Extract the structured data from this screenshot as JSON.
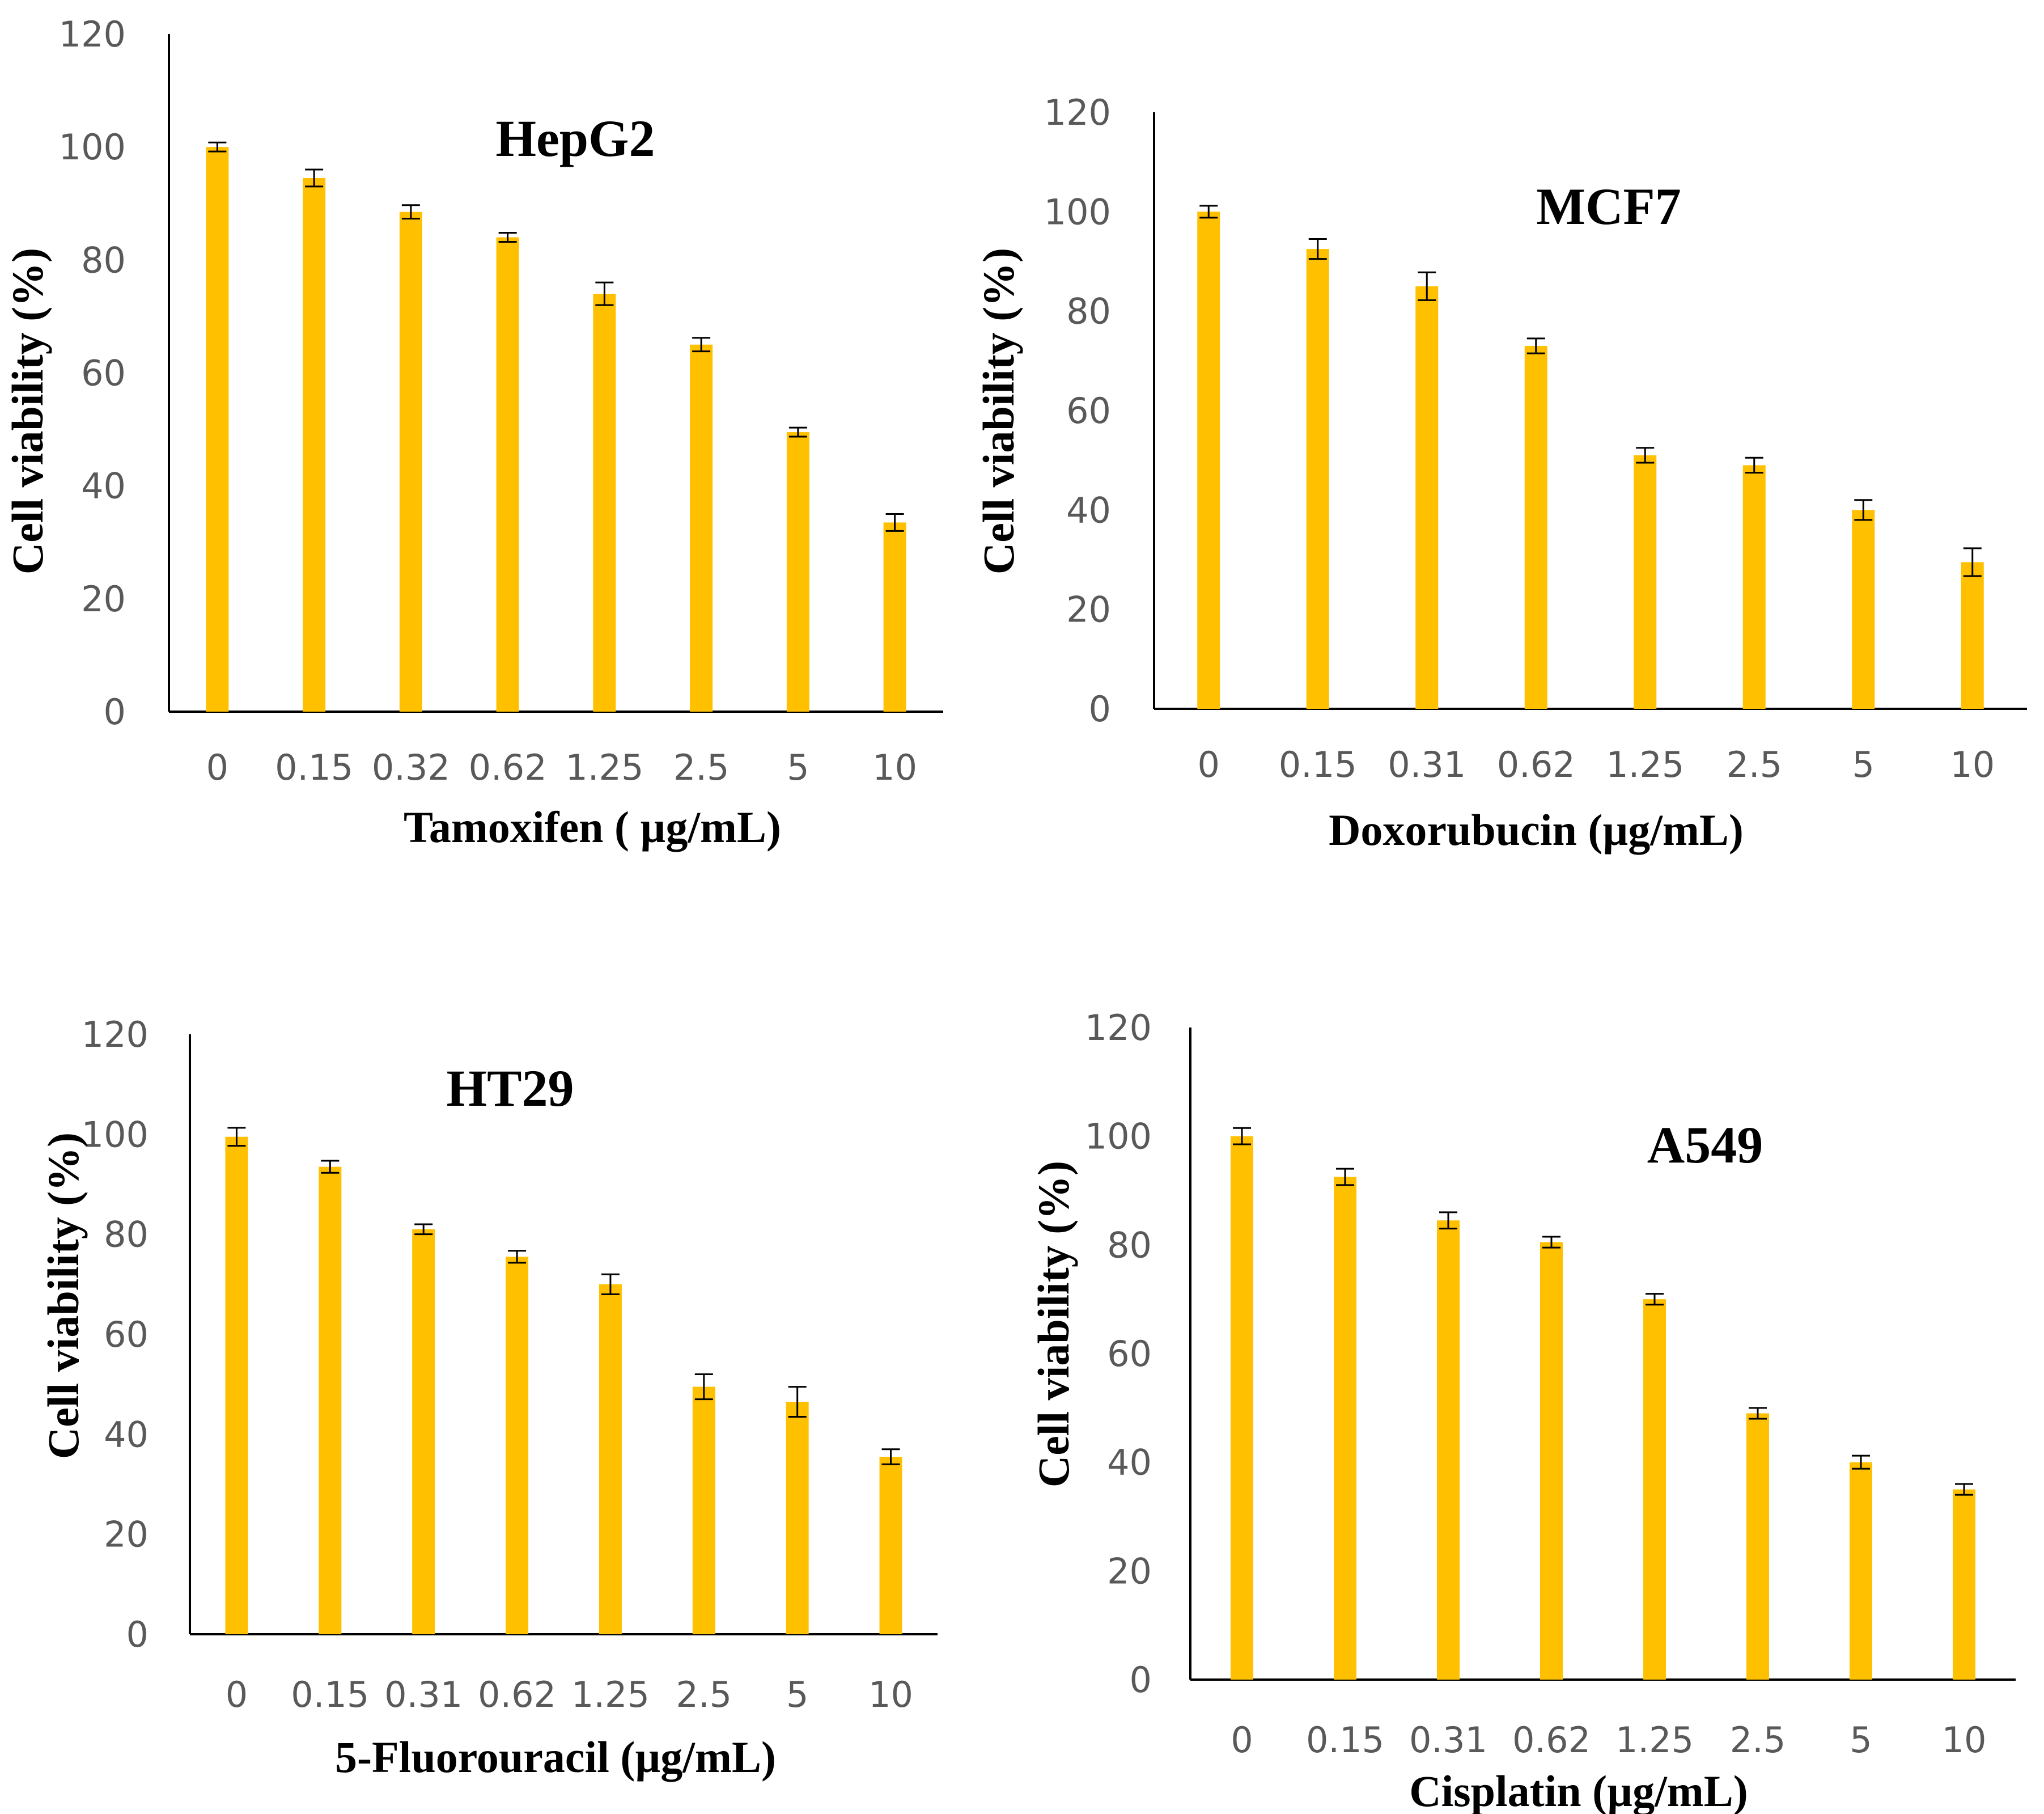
{
  "figure": {
    "bar_color": "#FFC000",
    "axis_color": "#000000",
    "error_bar_color": "#000000"
  },
  "chart_data": [
    {
      "type": "bar",
      "title": "HepG2",
      "xlabel": "Tamoxifen ( µg/mL)",
      "ylabel": "Cell viability (%)",
      "categories": [
        "0",
        "0.15",
        "0.32",
        "0.62",
        "1.25",
        "2.5",
        "5",
        "10"
      ],
      "values": [
        100,
        94.5,
        88.5,
        84,
        74,
        65,
        49.5,
        33.5
      ],
      "errors": [
        0.8,
        1.5,
        1.2,
        0.8,
        2.0,
        1.2,
        0.8,
        1.5
      ],
      "ylim": [
        0,
        120
      ],
      "yticks": [
        0,
        20,
        40,
        60,
        80,
        100,
        120
      ],
      "grid": false
    },
    {
      "type": "bar",
      "title": "MCF7",
      "xlabel": "Doxorubucin (µg/mL)",
      "ylabel": "Cell viability (%)",
      "categories": [
        "0",
        "0.15",
        "0.31",
        "0.62",
        "1.25",
        "2.5",
        "5",
        "10"
      ],
      "values": [
        100,
        92.5,
        85,
        73,
        51,
        49,
        40,
        29.5
      ],
      "errors": [
        1.2,
        2.0,
        2.8,
        1.5,
        1.5,
        1.5,
        2.0,
        2.8
      ],
      "ylim": [
        0,
        120
      ],
      "yticks": [
        0,
        20,
        40,
        60,
        80,
        100,
        120
      ],
      "grid": false
    },
    {
      "type": "bar",
      "title": "HT29",
      "xlabel": "5-Fluorouracil (µg/mL)",
      "ylabel": "Cell viability (%)",
      "categories": [
        "0",
        "0.15",
        "0.31",
        "0.62",
        "1.25",
        "2.5",
        "5",
        "10"
      ],
      "values": [
        99.5,
        93.5,
        81,
        75.5,
        70,
        49.5,
        46.5,
        35.5
      ],
      "errors": [
        1.8,
        1.2,
        1.0,
        1.2,
        2.0,
        2.5,
        3.0,
        1.5
      ],
      "ylim": [
        0,
        120
      ],
      "yticks": [
        0,
        20,
        40,
        60,
        80,
        100,
        120
      ],
      "grid": false
    },
    {
      "type": "bar",
      "title": "A549",
      "xlabel": "Cisplatin (µg/mL)",
      "ylabel": "Cell viability (%)",
      "categories": [
        "0",
        "0.15",
        "0.31",
        "0.62",
        "1.25",
        "2.5",
        "5",
        "10"
      ],
      "values": [
        100,
        92.5,
        84.5,
        80.5,
        70,
        49,
        40,
        35
      ],
      "errors": [
        1.5,
        1.5,
        1.5,
        1.0,
        1.0,
        1.0,
        1.2,
        1.0
      ],
      "ylim": [
        0,
        120
      ],
      "yticks": [
        0,
        20,
        40,
        60,
        80,
        100,
        120
      ],
      "grid": false
    }
  ]
}
